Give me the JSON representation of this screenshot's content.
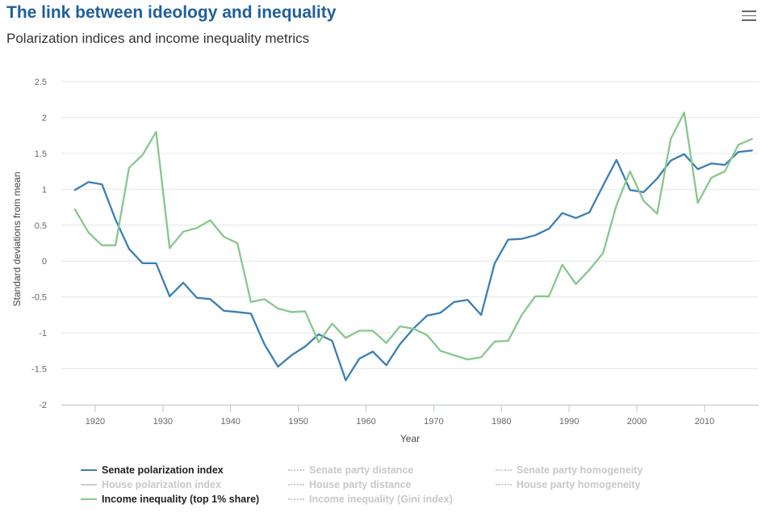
{
  "header": {
    "title": "The link between ideology and inequality",
    "subtitle": "Polarization indices and income inequality metrics",
    "menu_icon": "hamburger-menu-icon"
  },
  "colors": {
    "senate": "#3a7fb5",
    "income": "#86c88c",
    "inactive": "#cccccc",
    "grid": "#e6e6e6",
    "title": "#1f5f9a"
  },
  "chart_data": {
    "type": "line",
    "xlabel": "Year",
    "ylabel": "Standard deviations from mean",
    "xlim": [
      1915,
      2018
    ],
    "ylim": [
      -2,
      2.5
    ],
    "x_ticks": [
      "1920",
      "1930",
      "1940",
      "1950",
      "1960",
      "1970",
      "1980",
      "1990",
      "2000",
      "2010"
    ],
    "y_ticks": [
      "2.5",
      "2",
      "1.5",
      "1",
      "0.5",
      "0",
      "-0.5",
      "-1",
      "-1.5",
      "-2"
    ],
    "grid": "horizontal",
    "legend_position": "bottom",
    "series": [
      {
        "name": "Senate polarization index",
        "color": "#3a7fb5",
        "visible": true,
        "x": [
          1917,
          1919,
          1921,
          1923,
          1925,
          1927,
          1929,
          1931,
          1933,
          1935,
          1937,
          1939,
          1941,
          1943,
          1945,
          1947,
          1949,
          1951,
          1953,
          1955,
          1957,
          1959,
          1961,
          1963,
          1965,
          1967,
          1969,
          1971,
          1973,
          1975,
          1977,
          1979,
          1981,
          1983,
          1985,
          1987,
          1989,
          1991,
          1993,
          1995,
          1997,
          1999,
          2001,
          2003,
          2005,
          2007,
          2009,
          2011,
          2013,
          2015,
          2017
        ],
        "values": [
          0.99,
          1.1,
          1.07,
          0.58,
          0.17,
          -0.03,
          -0.03,
          -0.49,
          -0.3,
          -0.51,
          -0.53,
          -0.69,
          -0.71,
          -0.73,
          -1.16,
          -1.47,
          -1.31,
          -1.19,
          -1.02,
          -1.11,
          -1.66,
          -1.36,
          -1.26,
          -1.45,
          -1.16,
          -0.94,
          -0.76,
          -0.72,
          -0.57,
          -0.54,
          -0.75,
          -0.03,
          0.3,
          0.31,
          0.36,
          0.45,
          0.67,
          0.6,
          0.68,
          1.05,
          1.41,
          0.99,
          0.96,
          1.15,
          1.4,
          1.49,
          1.28,
          1.36,
          1.34,
          1.52,
          1.54
        ]
      },
      {
        "name": "Income inequality (top 1% share)",
        "color": "#86c88c",
        "visible": true,
        "x": [
          1917,
          1919,
          1921,
          1923,
          1925,
          1927,
          1929,
          1931,
          1933,
          1935,
          1937,
          1939,
          1941,
          1943,
          1945,
          1947,
          1949,
          1951,
          1953,
          1955,
          1957,
          1959,
          1961,
          1963,
          1965,
          1967,
          1969,
          1971,
          1973,
          1975,
          1977,
          1979,
          1981,
          1983,
          1985,
          1987,
          1989,
          1991,
          1993,
          1995,
          1997,
          1999,
          2001,
          2003,
          2005,
          2007,
          2009,
          2011,
          2013,
          2015,
          2017
        ],
        "values": [
          0.72,
          0.4,
          0.22,
          0.22,
          1.3,
          1.48,
          1.8,
          0.18,
          0.41,
          0.46,
          0.57,
          0.34,
          0.25,
          -0.57,
          -0.53,
          -0.66,
          -0.71,
          -0.7,
          -1.13,
          -0.87,
          -1.07,
          -0.97,
          -0.97,
          -1.14,
          -0.91,
          -0.94,
          -1.03,
          -1.25,
          -1.31,
          -1.37,
          -1.34,
          -1.12,
          -1.11,
          -0.75,
          -0.49,
          -0.49,
          -0.05,
          -0.32,
          -0.12,
          0.11,
          0.78,
          1.25,
          0.84,
          0.66,
          1.7,
          2.07,
          0.81,
          1.16,
          1.25,
          1.62,
          1.7
        ]
      }
    ]
  },
  "legend": {
    "columns": [
      [
        {
          "label": "Senate polarization index",
          "state": "active",
          "style": "solid",
          "color": "#3a7fb5"
        },
        {
          "label": "House polarization index",
          "state": "inactive",
          "style": "solid",
          "color": "#cccccc"
        },
        {
          "label": "Income inequality (top 1% share)",
          "state": "active",
          "style": "solid",
          "color": "#86c88c"
        }
      ],
      [
        {
          "label": "Senate party distance",
          "state": "inactive",
          "style": "dotted",
          "color": "#cccccc"
        },
        {
          "label": "House party distance",
          "state": "inactive",
          "style": "dotted",
          "color": "#cccccc"
        },
        {
          "label": "Income inequality (Gini index)",
          "state": "inactive",
          "style": "dotted",
          "color": "#cccccc"
        }
      ],
      [
        {
          "label": "Senate party homogeneity",
          "state": "inactive",
          "style": "dotted",
          "color": "#cccccc"
        },
        {
          "label": "House party homogeneity",
          "state": "inactive",
          "style": "dotted",
          "color": "#cccccc"
        }
      ]
    ]
  }
}
